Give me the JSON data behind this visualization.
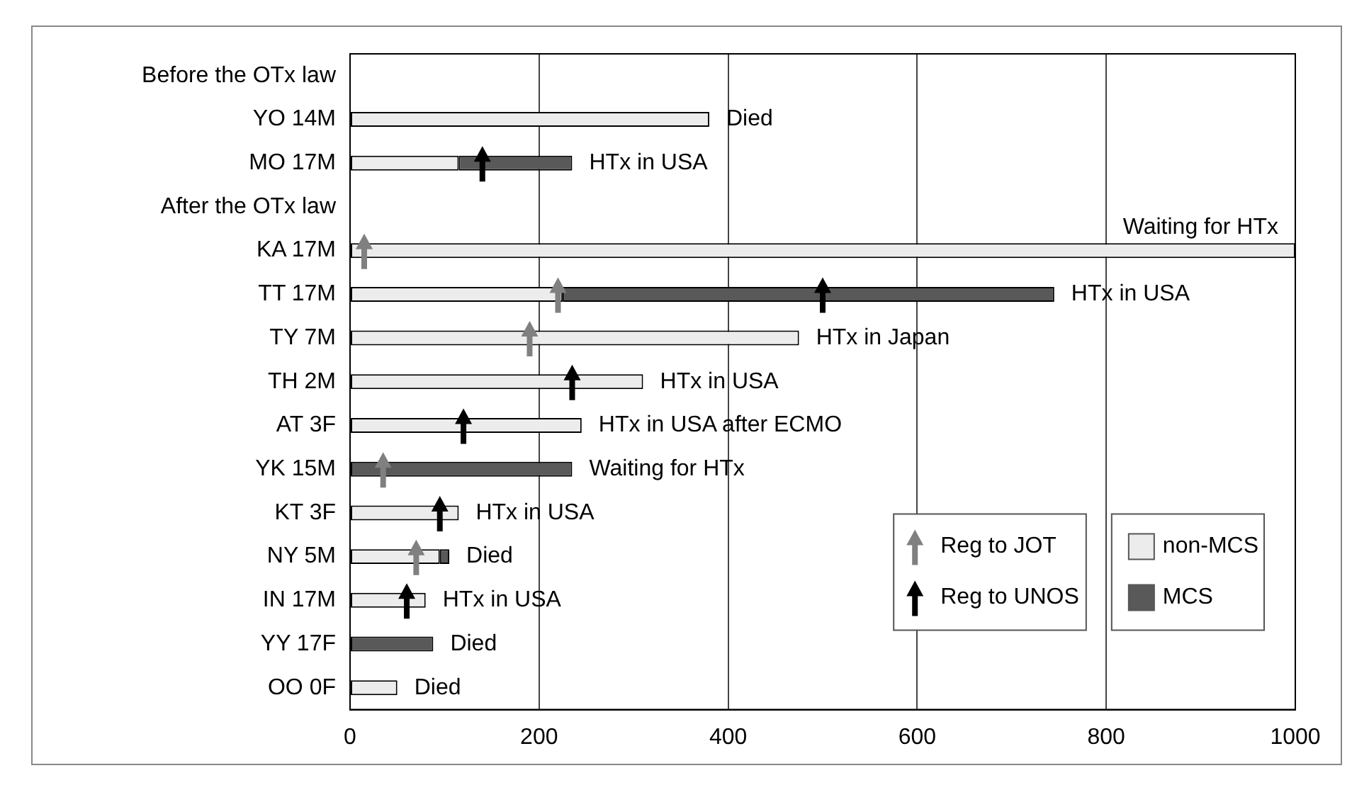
{
  "chart_data": {
    "type": "bar",
    "orientation": "horizontal",
    "stacked": true,
    "categories": [
      "Before the OTx law",
      "YO 14M",
      "MO 17M",
      "After the OTx law",
      "KA 17M",
      "TT 17M",
      "TY 7M",
      "TH 2M",
      "AT 3F",
      "YK 15M",
      "KT 3F",
      "NY 5M",
      "IN 17M",
      "YY 17F",
      "OO 0F"
    ],
    "series": [
      {
        "name": "non-MCS",
        "color": "#ececec",
        "values": [
          null,
          380,
          115,
          null,
          1000,
          225,
          475,
          310,
          245,
          null,
          115,
          95,
          80,
          null,
          50
        ]
      },
      {
        "name": "MCS",
        "color": "#595959",
        "values": [
          null,
          null,
          120,
          null,
          null,
          520,
          null,
          null,
          null,
          235,
          null,
          10,
          null,
          88,
          null
        ]
      },
      {
        "type": "scatter",
        "name": "Reg to JOT",
        "color": "#808080",
        "x": [
          "KA 17M",
          "TT 17M",
          "TY 7M",
          "YK 15M",
          "NY 5M"
        ],
        "values": [
          15,
          220,
          190,
          35,
          70
        ]
      },
      {
        "type": "scatter",
        "name": "Reg to UNOS",
        "color": "#000000",
        "x": [
          "MO 17M",
          "TT 17M",
          "TH 2M",
          "AT 3F",
          "KT 3F",
          "IN 17M"
        ],
        "values": [
          140,
          500,
          235,
          120,
          95,
          60
        ]
      }
    ],
    "xlim": [
      0,
      1000
    ],
    "xticks": [
      0,
      200,
      400,
      600,
      800,
      1000
    ],
    "grid": "x",
    "legend": "bottom right",
    "annotations": [
      {
        "text": "Died",
        "x": 380,
        "y": "YO 14M"
      },
      {
        "text": "HTx in USA",
        "x": 235,
        "y": "MO 17M"
      },
      {
        "text": "Waiting for HTx",
        "x": 1000,
        "y": "KA 17M"
      },
      {
        "text": "HTx in USA",
        "x": 745,
        "y": "TT 17M"
      },
      {
        "text": "HTx in Japan",
        "x": 475,
        "y": "TY 7M"
      },
      {
        "text": "HTx in USA",
        "x": 310,
        "y": "TH 2M"
      },
      {
        "text": "HTx in USA after ECMO",
        "x": 245,
        "y": "AT 3F"
      },
      {
        "text": "Waiting for HTx",
        "x": 235,
        "y": "YK 15M"
      },
      {
        "text": "HTx in USA",
        "x": 115,
        "y": "KT 3F"
      },
      {
        "text": "Died",
        "x": 105,
        "y": "NY 5M"
      },
      {
        "text": "HTx in USA",
        "x": 80,
        "y": "IN 17M"
      },
      {
        "text": "Died",
        "x": 88,
        "y": "YY 17F"
      },
      {
        "text": "Died",
        "x": 50,
        "y": "OO 0F"
      }
    ]
  }
}
